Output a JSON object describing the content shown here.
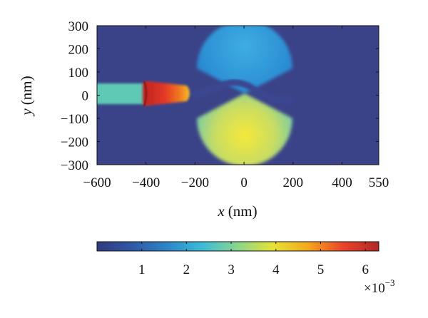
{
  "chart_data": {
    "type": "heatmap",
    "title": "",
    "xlabel": {
      "var": "x",
      "unit": "(nm)"
    },
    "ylabel": {
      "var": "y",
      "unit": "(nm)"
    },
    "xlim": [
      -600,
      550
    ],
    "ylim": [
      -300,
      300
    ],
    "x_ticks": [
      -600,
      -400,
      -200,
      0,
      200,
      400,
      550
    ],
    "x_tick_labels": [
      "−600",
      "−400",
      "−200",
      "0",
      "200",
      "400",
      "550"
    ],
    "y_ticks": [
      300,
      200,
      100,
      0,
      -100,
      -200,
      -300
    ],
    "y_tick_labels": [
      "300",
      "200",
      "100",
      "0",
      "−100",
      "−200",
      "−300"
    ],
    "grid": false,
    "background_value": 0.0,
    "regions": [
      {
        "kind": "waveguide",
        "x_range": [
          -600,
          -400
        ],
        "y_range": [
          -45,
          45
        ],
        "value": 2.8
      },
      {
        "kind": "hot_tip",
        "x_range": [
          -410,
          -240
        ],
        "y_range": [
          -45,
          45
        ],
        "value": 5.6
      },
      {
        "kind": "disk_upper",
        "center": [
          0,
          0
        ],
        "radius": 200,
        "angle_range_deg": [
          30,
          150
        ],
        "value": 1.4
      },
      {
        "kind": "disk_lower",
        "center": [
          0,
          0
        ],
        "radius": 200,
        "angle_range_deg": [
          210,
          330
        ],
        "value": 3.2
      },
      {
        "kind": "slot_channel",
        "path_x": [
          -200,
          -100,
          -50,
          0,
          50,
          100,
          200
        ],
        "path_y": [
          -10,
          25,
          50,
          45,
          0,
          -25,
          -20
        ],
        "value": 1.2
      }
    ],
    "colorbar": {
      "colormap": "jet",
      "range": [
        0,
        6.3
      ],
      "tick_values": [
        1,
        2,
        3,
        4,
        5,
        6
      ],
      "tick_labels": [
        "1",
        "2",
        "3",
        "4",
        "5",
        "6"
      ],
      "multiplier": {
        "base": "×10",
        "exponent": "−3"
      },
      "stops": [
        "#303a7e",
        "#2f58a5",
        "#2d86c8",
        "#3dbcd7",
        "#8ad68c",
        "#e6e235",
        "#f4a71f",
        "#e8442a",
        "#b02828"
      ]
    }
  }
}
